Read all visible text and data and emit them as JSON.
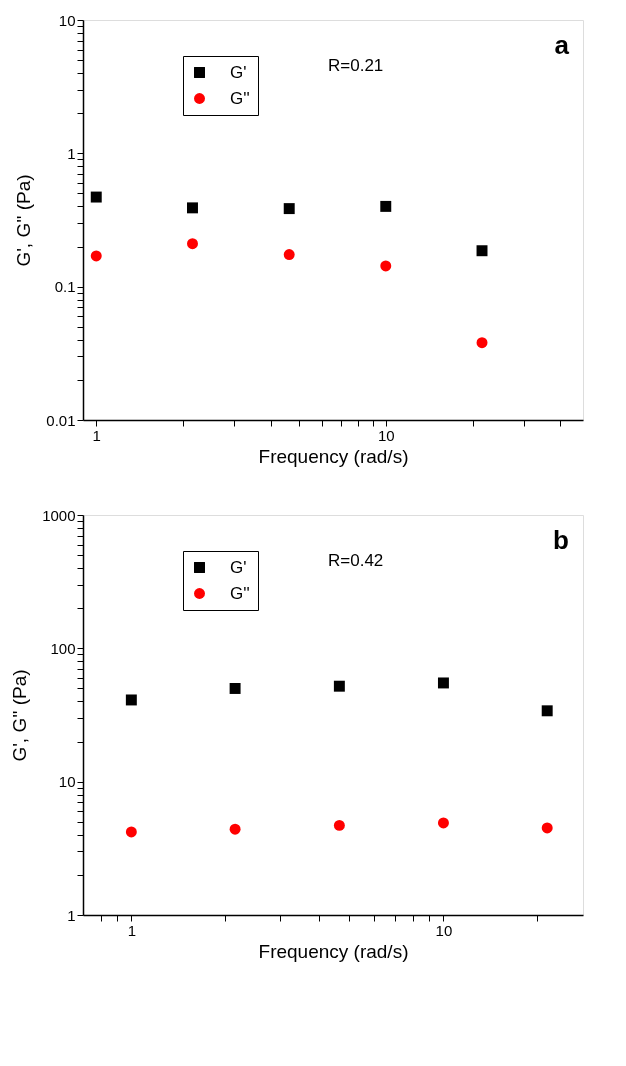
{
  "chart_data": [
    {
      "type": "scatter",
      "xlabel": "Frequency (rad/s)",
      "ylabel": "G', G'' (Pa)",
      "log": "xy",
      "grid": false,
      "legend": "top left",
      "annotations": [
        "a",
        "R=0.21"
      ],
      "xlim": [
        0.9,
        48
      ],
      "ylim": [
        0.01,
        10
      ],
      "xticks": [
        1,
        {
          "value": 2,
          "label": null
        },
        {
          "value": 3,
          "label": null
        },
        {
          "value": 4,
          "label": null
        },
        {
          "value": 5,
          "label": null
        },
        {
          "value": 6,
          "label": null
        },
        {
          "value": 7,
          "label": null
        },
        {
          "value": 8,
          "label": null
        },
        {
          "value": 9,
          "label": null
        },
        10,
        {
          "value": 20,
          "label": null
        },
        {
          "value": 30,
          "label": null
        },
        {
          "value": 40,
          "label": null
        }
      ],
      "yticks": [
        0.01,
        {
          "value": 0.02,
          "label": null
        },
        {
          "value": 0.03,
          "label": null
        },
        {
          "value": 0.04,
          "label": null
        },
        {
          "value": 0.05,
          "label": null
        },
        {
          "value": 0.06,
          "label": null
        },
        {
          "value": 0.07,
          "label": null
        },
        {
          "value": 0.08,
          "label": null
        },
        {
          "value": 0.09,
          "label": null
        },
        0.1,
        {
          "value": 0.2,
          "label": null
        },
        {
          "value": 0.3,
          "label": null
        },
        {
          "value": 0.4,
          "label": null
        },
        {
          "value": 0.5,
          "label": null
        },
        {
          "value": 0.6,
          "label": null
        },
        {
          "value": 0.7,
          "label": null
        },
        {
          "value": 0.8,
          "label": null
        },
        {
          "value": 0.9,
          "label": null
        },
        1,
        {
          "value": 2,
          "label": null
        },
        {
          "value": 3,
          "label": null
        },
        {
          "value": 4,
          "label": null
        },
        {
          "value": 5,
          "label": null
        },
        {
          "value": 6,
          "label": null
        },
        {
          "value": 7,
          "label": null
        },
        {
          "value": 8,
          "label": null
        },
        {
          "value": 9,
          "label": null
        },
        10
      ],
      "x": [
        1,
        2.15,
        4.64,
        10,
        21.5
      ],
      "series": [
        {
          "name": "G'",
          "color": "#000000",
          "marker": "square",
          "values": [
            0.47,
            0.39,
            0.385,
            0.4,
            0.186
          ]
        },
        {
          "name": "G''",
          "color": "#ff0000",
          "marker": "circle",
          "values": [
            0.17,
            0.21,
            0.174,
            0.143,
            0.038
          ]
        }
      ]
    },
    {
      "type": "scatter",
      "xlabel": "Frequency (rad/s)",
      "ylabel": "G', G'' (Pa)",
      "log": "xy",
      "grid": false,
      "legend": "top left",
      "annotations": [
        "b",
        "R=0.42"
      ],
      "xlim": [
        0.7,
        28
      ],
      "ylim": [
        1,
        1000
      ],
      "xticks": [
        {
          "value": 0.8,
          "label": null
        },
        {
          "value": 0.9,
          "label": null
        },
        1,
        {
          "value": 2,
          "label": null
        },
        {
          "value": 3,
          "label": null
        },
        {
          "value": 4,
          "label": null
        },
        {
          "value": 5,
          "label": null
        },
        {
          "value": 6,
          "label": null
        },
        {
          "value": 7,
          "label": null
        },
        {
          "value": 8,
          "label": null
        },
        {
          "value": 9,
          "label": null
        },
        10,
        {
          "value": 20,
          "label": null
        }
      ],
      "yticks": [
        1,
        {
          "value": 2,
          "label": null
        },
        {
          "value": 3,
          "label": null
        },
        {
          "value": 4,
          "label": null
        },
        {
          "value": 5,
          "label": null
        },
        {
          "value": 6,
          "label": null
        },
        {
          "value": 7,
          "label": null
        },
        {
          "value": 8,
          "label": null
        },
        {
          "value": 9,
          "label": null
        },
        10,
        {
          "value": 20,
          "label": null
        },
        {
          "value": 30,
          "label": null
        },
        {
          "value": 40,
          "label": null
        },
        {
          "value": 50,
          "label": null
        },
        {
          "value": 60,
          "label": null
        },
        {
          "value": 70,
          "label": null
        },
        {
          "value": 80,
          "label": null
        },
        {
          "value": 90,
          "label": null
        },
        100,
        {
          "value": 200,
          "label": null
        },
        {
          "value": 300,
          "label": null
        },
        {
          "value": 400,
          "label": null
        },
        {
          "value": 500,
          "label": null
        },
        {
          "value": 600,
          "label": null
        },
        {
          "value": 700,
          "label": null
        },
        {
          "value": 800,
          "label": null
        },
        {
          "value": 900,
          "label": null
        },
        1000
      ],
      "x": [
        1,
        2.15,
        4.64,
        10,
        21.5
      ],
      "series": [
        {
          "name": "G'",
          "color": "#000000",
          "marker": "square",
          "values": [
            41,
            50,
            52,
            55,
            34
          ]
        },
        {
          "name": "G''",
          "color": "#ff0000",
          "marker": "circle",
          "values": [
            4.2,
            4.4,
            4.7,
            4.9,
            4.5
          ]
        }
      ]
    }
  ]
}
